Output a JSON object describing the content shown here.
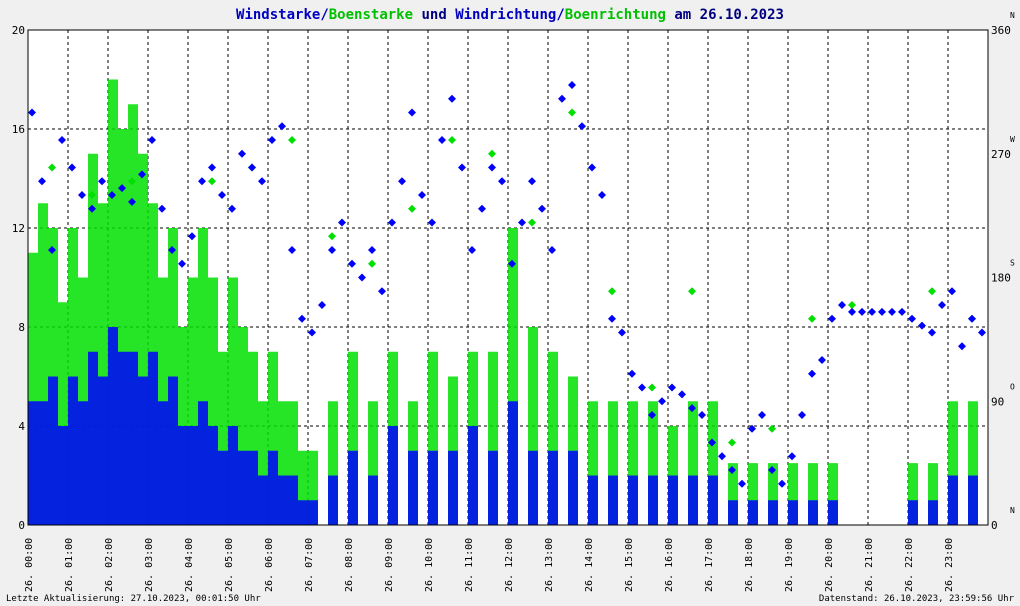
{
  "title": {
    "part1": "Windstarke",
    "sep1": "/",
    "part2": "Boenstarke",
    "part3": " und ",
    "part4": "Windrichtung",
    "sep2": "/",
    "part5": "Boenrichtung",
    "part6": " am 26.10.2023"
  },
  "colors": {
    "wind": "#0000ff",
    "gust": "#00e000",
    "grid": "#000000",
    "background": "#ffffff",
    "frame": "#f0f0f0",
    "title_wind": "#0000c0",
    "title_gust": "#00c000"
  },
  "footer": {
    "left": "Letzte Aktualisierung: 27.10.2023, 00:01:50 Uhr",
    "right": "Datenstand: 26.10.2023, 23:59:56 Uhr"
  },
  "left_axis": {
    "ticks": [
      "0",
      "4",
      "8",
      "12",
      "16",
      "20"
    ]
  },
  "right_axis": {
    "ticks": [
      "0",
      "90",
      "180",
      "270",
      "360"
    ],
    "compass": [
      "N",
      "O",
      "S",
      "W",
      "N"
    ]
  },
  "x_axis": {
    "day": "26.",
    "hours": [
      "00:00",
      "01:00",
      "02:00",
      "03:00",
      "04:00",
      "05:00",
      "06:00",
      "07:00",
      "08:00",
      "09:00",
      "10:00",
      "11:00",
      "12:00",
      "13:00",
      "14:00",
      "15:00",
      "16:00",
      "17:00",
      "18:00",
      "19:00",
      "20:00",
      "21:00",
      "22:00",
      "23:00"
    ]
  },
  "chart_data": {
    "type": "bar",
    "xlabel": "",
    "ylabel": "",
    "x_unit": "hour of day",
    "xlim": [
      0,
      24
    ],
    "ylim": [
      0,
      20
    ],
    "y2lim": [
      0,
      360
    ],
    "grid": true,
    "legend": "none",
    "series": [
      {
        "name": "Windstarke",
        "axis": "left",
        "kind": "bars",
        "x": [
          0.0,
          0.25,
          0.5,
          0.75,
          1.0,
          1.25,
          1.5,
          1.75,
          2.0,
          2.25,
          2.5,
          2.75,
          3.0,
          3.25,
          3.5,
          3.75,
          4.0,
          4.25,
          4.5,
          4.75,
          5.0,
          5.25,
          5.5,
          5.75,
          6.0,
          6.25,
          6.5,
          6.75,
          7.0,
          7.5,
          8.0,
          8.5,
          9.0,
          9.5,
          10.0,
          10.5,
          11.0,
          11.5,
          12.0,
          12.5,
          13.0,
          13.5,
          14.0,
          14.5,
          15.0,
          15.5,
          16.0,
          16.5,
          17.0,
          17.5,
          18.0,
          18.5,
          19.0,
          19.5,
          20.0,
          22.0,
          22.5,
          23.0,
          23.5
        ],
        "values": [
          5,
          5,
          6,
          4,
          6,
          5,
          7,
          6,
          8,
          7,
          7,
          6,
          7,
          5,
          6,
          4,
          4,
          5,
          4,
          3,
          4,
          3,
          3,
          2,
          3,
          2,
          2,
          1,
          1,
          2,
          3,
          2,
          4,
          3,
          3,
          3,
          4,
          3,
          5,
          3,
          3,
          3,
          2,
          2,
          2,
          2,
          2,
          2,
          2,
          1,
          1,
          1,
          1,
          1,
          1,
          1,
          1,
          2,
          2
        ]
      },
      {
        "name": "Boenstarke",
        "axis": "left",
        "kind": "bars",
        "x": [
          0.0,
          0.25,
          0.5,
          0.75,
          1.0,
          1.25,
          1.5,
          1.75,
          2.0,
          2.25,
          2.5,
          2.75,
          3.0,
          3.25,
          3.5,
          3.75,
          4.0,
          4.25,
          4.5,
          4.75,
          5.0,
          5.25,
          5.5,
          5.75,
          6.0,
          6.25,
          6.5,
          6.75,
          7.0,
          7.5,
          8.0,
          8.5,
          9.0,
          9.5,
          10.0,
          10.5,
          11.0,
          11.5,
          12.0,
          12.5,
          13.0,
          13.5,
          14.0,
          14.5,
          15.0,
          15.5,
          16.0,
          16.5,
          17.0,
          17.5,
          18.0,
          18.5,
          19.0,
          19.5,
          20.0,
          22.0,
          22.5,
          23.0,
          23.5
        ],
        "values": [
          11,
          13,
          12,
          9,
          12,
          10,
          15,
          13,
          18,
          16,
          17,
          15,
          13,
          10,
          12,
          8,
          10,
          12,
          10,
          7,
          10,
          8,
          7,
          5,
          7,
          5,
          5,
          3,
          3,
          5,
          7,
          5,
          7,
          5,
          7,
          6,
          7,
          7,
          12,
          8,
          7,
          6,
          5,
          5,
          5,
          5,
          4,
          5,
          5,
          2.5,
          2.5,
          2.5,
          2.5,
          2.5,
          2.5,
          2.5,
          2.5,
          5,
          5
        ]
      },
      {
        "name": "Windrichtung",
        "axis": "right",
        "kind": "points",
        "x": [
          0.0,
          0.25,
          0.5,
          0.75,
          1.0,
          1.25,
          1.5,
          1.75,
          2.0,
          2.25,
          2.5,
          2.75,
          3.0,
          3.25,
          3.5,
          3.75,
          4.0,
          4.25,
          4.5,
          4.75,
          5.0,
          5.25,
          5.5,
          5.75,
          6.0,
          6.25,
          6.5,
          6.75,
          7.0,
          7.25,
          7.5,
          7.75,
          8.0,
          8.25,
          8.5,
          8.75,
          9.0,
          9.25,
          9.5,
          9.75,
          10.0,
          10.25,
          10.5,
          10.75,
          11.0,
          11.25,
          11.5,
          11.75,
          12.0,
          12.25,
          12.5,
          12.75,
          13.0,
          13.25,
          13.5,
          13.75,
          14.0,
          14.25,
          14.5,
          14.75,
          15.0,
          15.25,
          15.5,
          15.75,
          16.0,
          16.25,
          16.5,
          16.75,
          17.0,
          17.25,
          17.5,
          17.75,
          18.0,
          18.25,
          18.5,
          18.75,
          19.0,
          19.25,
          19.5,
          19.75,
          20.0,
          20.25,
          20.5,
          20.75,
          21.0,
          21.25,
          21.5,
          21.75,
          22.0,
          22.25,
          22.5,
          22.75,
          23.0,
          23.25,
          23.5,
          23.75
        ],
        "values": [
          300,
          250,
          200,
          280,
          260,
          240,
          230,
          250,
          240,
          245,
          235,
          255,
          280,
          230,
          200,
          190,
          210,
          250,
          260,
          240,
          230,
          270,
          260,
          250,
          280,
          290,
          200,
          150,
          140,
          160,
          200,
          220,
          190,
          180,
          200,
          170,
          220,
          250,
          300,
          240,
          220,
          280,
          310,
          260,
          200,
          230,
          260,
          250,
          190,
          220,
          250,
          230,
          200,
          310,
          320,
          290,
          260,
          240,
          150,
          140,
          110,
          100,
          80,
          90,
          100,
          95,
          85,
          80,
          60,
          50,
          40,
          30,
          70,
          80,
          40,
          30,
          50,
          80,
          110,
          120,
          150,
          160,
          155,
          155,
          155,
          155,
          155,
          155,
          150,
          145,
          140,
          160,
          170,
          130,
          150,
          140
        ]
      },
      {
        "name": "Boenrichtung",
        "axis": "right",
        "kind": "points",
        "x": [
          0.5,
          1.5,
          2.5,
          3.5,
          4.5,
          5.5,
          6.5,
          7.5,
          8.5,
          9.5,
          10.5,
          11.5,
          12.5,
          13.5,
          14.5,
          15.5,
          16.5,
          17.5,
          18.5,
          19.5,
          20.5,
          22.5,
          23.5
        ],
        "values": [
          260,
          240,
          250,
          200,
          250,
          260,
          280,
          210,
          190,
          230,
          280,
          270,
          220,
          300,
          170,
          100,
          170,
          60,
          70,
          150,
          160,
          170,
          150
        ]
      }
    ]
  }
}
